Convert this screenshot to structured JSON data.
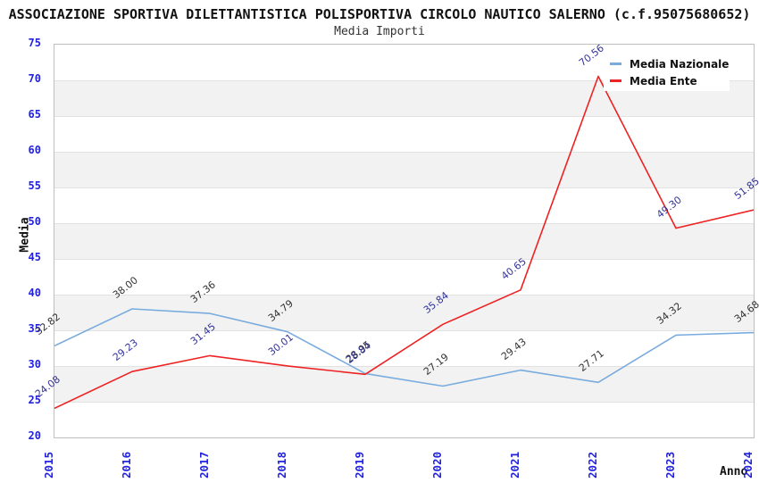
{
  "header": {
    "title": "ASSOCIAZIONE SPORTIVA DILETTANTISTICA POLISPORTIVA CIRCOLO NAUTICO SALERNO (c.f.95075680652)",
    "subtitle": "Media Importi"
  },
  "chart_data": {
    "type": "line",
    "title": "Media Importi",
    "xlabel": "Anno",
    "ylabel": "Media",
    "categories": [
      "2015",
      "2016",
      "2017",
      "2018",
      "2019",
      "2020",
      "2021",
      "2022",
      "2023",
      "2024"
    ],
    "ylim": [
      20,
      75
    ],
    "ytick_step": 5,
    "grid": "horizontal gridlines every 5 units with alternating white/gray bands",
    "legend_position": "top-right",
    "series": [
      {
        "name": "Media Nazionale",
        "color": "#79ACDE",
        "label_color": "#333333",
        "values": [
          32.82,
          38.0,
          37.36,
          34.79,
          28.95,
          27.19,
          29.43,
          27.71,
          34.32,
          34.68
        ]
      },
      {
        "name": "Media Ente",
        "color": "#EE2222",
        "label_color": "#333399",
        "values": [
          24.08,
          29.23,
          31.45,
          30.01,
          28.84,
          35.84,
          40.65,
          70.56,
          49.3,
          51.85
        ]
      }
    ],
    "style": {
      "axis_tick_color": "#2222DD",
      "band_fill": "#F2F2F2",
      "gridline_color": "#E2E2E2",
      "plot_border_color": "#BFBFBF"
    }
  }
}
